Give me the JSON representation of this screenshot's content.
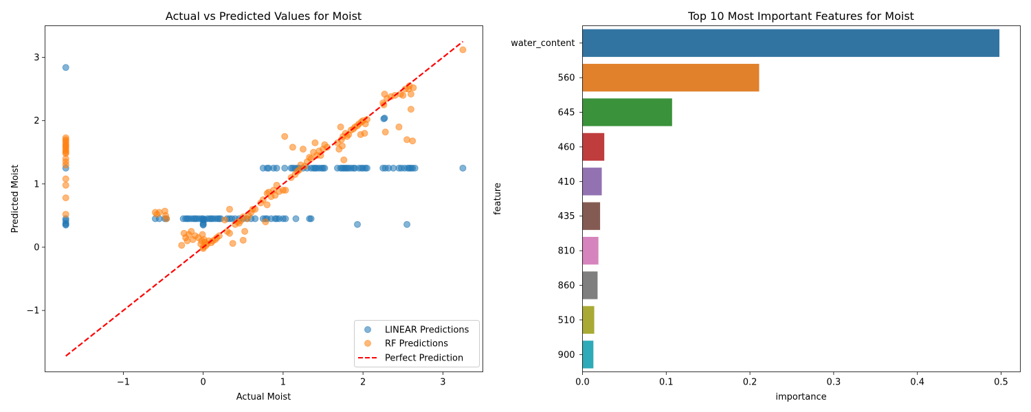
{
  "figure": {
    "background": "#ffffff"
  },
  "chart_data": [
    {
      "type": "scatter",
      "title": "Actual vs Predicted Values for Moist",
      "xlabel": "Actual Moist",
      "ylabel": "Predicted Moist",
      "xlim": [
        -1.98,
        3.5
      ],
      "ylim": [
        -1.97,
        3.5
      ],
      "xticks": [
        -1,
        0,
        1,
        2,
        3
      ],
      "yticks": [
        -1,
        0,
        1,
        2,
        3
      ],
      "tick_labels": {
        "x": [
          "−1",
          "0",
          "1",
          "2",
          "3"
        ],
        "y": [
          "−1",
          "0",
          "1",
          "2",
          "3"
        ]
      },
      "grid": false,
      "legend_position": "lower-right",
      "legend": [
        {
          "label": "LINEAR Predictions",
          "kind": "marker",
          "color": "#1f77b4"
        },
        {
          "label": "RF Predictions",
          "kind": "marker",
          "color": "#ff7f0e"
        },
        {
          "label": "Perfect Prediction",
          "kind": "dashed-line",
          "color": "#ff0000"
        }
      ],
      "series": [
        {
          "name": "LINEAR Predictions",
          "color": "#1f77b4",
          "alpha": 0.55,
          "points": [
            [
              -1.72,
              2.84
            ],
            [
              -1.72,
              1.25
            ],
            [
              -1.72,
              0.45
            ],
            [
              -1.72,
              0.42
            ],
            [
              -1.72,
              0.38
            ],
            [
              -1.72,
              0.36
            ],
            [
              -1.72,
              0.35
            ],
            [
              -0.6,
              0.45
            ],
            [
              -0.55,
              0.45
            ],
            [
              -0.48,
              0.45
            ],
            [
              -0.46,
              0.45
            ],
            [
              -0.25,
              0.45
            ],
            [
              -0.22,
              0.45
            ],
            [
              -0.2,
              0.45
            ],
            [
              -0.18,
              0.45
            ],
            [
              -0.15,
              0.45
            ],
            [
              -0.12,
              0.45
            ],
            [
              -0.1,
              0.45
            ],
            [
              -0.08,
              0.45
            ],
            [
              -0.05,
              0.45
            ],
            [
              -0.02,
              0.45
            ],
            [
              0.0,
              0.45
            ],
            [
              0.0,
              0.43
            ],
            [
              0.0,
              0.38
            ],
            [
              0.0,
              0.36
            ],
            [
              0.0,
              0.35
            ],
            [
              0.02,
              0.44
            ],
            [
              0.05,
              0.45
            ],
            [
              0.08,
              0.45
            ],
            [
              0.1,
              0.45
            ],
            [
              0.12,
              0.45
            ],
            [
              0.15,
              0.45
            ],
            [
              0.18,
              0.45
            ],
            [
              0.2,
              0.45
            ],
            [
              0.22,
              0.45
            ],
            [
              0.3,
              0.45
            ],
            [
              0.33,
              0.45
            ],
            [
              0.36,
              0.45
            ],
            [
              0.4,
              0.45
            ],
            [
              0.45,
              0.45
            ],
            [
              0.5,
              0.45
            ],
            [
              0.55,
              0.45
            ],
            [
              0.6,
              0.45
            ],
            [
              0.65,
              0.45
            ],
            [
              0.75,
              0.45
            ],
            [
              0.78,
              0.45
            ],
            [
              0.8,
              0.45
            ],
            [
              0.85,
              0.45
            ],
            [
              0.9,
              0.45
            ],
            [
              0.92,
              0.45
            ],
            [
              0.95,
              0.45
            ],
            [
              1.0,
              0.45
            ],
            [
              1.03,
              0.45
            ],
            [
              1.16,
              0.45
            ],
            [
              1.33,
              0.45
            ],
            [
              1.35,
              0.45
            ],
            [
              0.75,
              1.25
            ],
            [
              0.8,
              1.25
            ],
            [
              0.82,
              1.25
            ],
            [
              0.88,
              1.25
            ],
            [
              0.92,
              1.25
            ],
            [
              1.02,
              1.25
            ],
            [
              1.1,
              1.25
            ],
            [
              1.12,
              1.25
            ],
            [
              1.15,
              1.25
            ],
            [
              1.18,
              1.25
            ],
            [
              1.2,
              1.25
            ],
            [
              1.25,
              1.25
            ],
            [
              1.3,
              1.25
            ],
            [
              1.35,
              1.25
            ],
            [
              1.38,
              1.25
            ],
            [
              1.4,
              1.25
            ],
            [
              1.42,
              1.25
            ],
            [
              1.45,
              1.25
            ],
            [
              1.48,
              1.25
            ],
            [
              1.5,
              1.25
            ],
            [
              1.52,
              1.25
            ],
            [
              1.68,
              1.25
            ],
            [
              1.72,
              1.25
            ],
            [
              1.74,
              1.25
            ],
            [
              1.76,
              1.25
            ],
            [
              1.78,
              1.25
            ],
            [
              1.8,
              1.25
            ],
            [
              1.82,
              1.25
            ],
            [
              1.85,
              1.25
            ],
            [
              1.88,
              1.25
            ],
            [
              1.9,
              1.25
            ],
            [
              1.95,
              1.25
            ],
            [
              1.98,
              1.25
            ],
            [
              2.0,
              1.25
            ],
            [
              2.03,
              1.25
            ],
            [
              2.05,
              1.25
            ],
            [
              2.25,
              1.25
            ],
            [
              2.28,
              1.25
            ],
            [
              2.32,
              1.25
            ],
            [
              2.38,
              1.25
            ],
            [
              2.45,
              1.25
            ],
            [
              2.48,
              1.25
            ],
            [
              2.52,
              1.25
            ],
            [
              2.56,
              1.25
            ],
            [
              2.58,
              1.25
            ],
            [
              2.6,
              1.25
            ],
            [
              2.62,
              1.25
            ],
            [
              2.65,
              1.25
            ],
            [
              3.25,
              1.25
            ],
            [
              2.26,
              2.03
            ],
            [
              2.27,
              2.04
            ],
            [
              1.93,
              0.36
            ],
            [
              2.55,
              0.36
            ]
          ]
        },
        {
          "name": "RF Predictions",
          "color": "#ff7f0e",
          "alpha": 0.55,
          "points": [
            [
              -1.72,
              1.73
            ],
            [
              -1.72,
              1.7
            ],
            [
              -1.72,
              1.68
            ],
            [
              -1.72,
              1.65
            ],
            [
              -1.72,
              1.62
            ],
            [
              -1.72,
              1.6
            ],
            [
              -1.72,
              1.58
            ],
            [
              -1.72,
              1.55
            ],
            [
              -1.72,
              1.52
            ],
            [
              -1.72,
              1.5
            ],
            [
              -1.72,
              1.48
            ],
            [
              -1.72,
              1.4
            ],
            [
              -1.72,
              1.35
            ],
            [
              -1.72,
              1.3
            ],
            [
              -1.72,
              1.08
            ],
            [
              -1.72,
              0.98
            ],
            [
              -1.72,
              0.78
            ],
            [
              -1.72,
              0.52
            ],
            [
              -0.6,
              0.55
            ],
            [
              -0.58,
              0.52
            ],
            [
              -0.55,
              0.55
            ],
            [
              -0.48,
              0.57
            ],
            [
              -0.47,
              0.5
            ],
            [
              -0.46,
              0.45
            ],
            [
              -0.27,
              0.03
            ],
            [
              -0.24,
              0.22
            ],
            [
              -0.22,
              0.15
            ],
            [
              -0.2,
              0.1
            ],
            [
              -0.18,
              0.2
            ],
            [
              -0.15,
              0.25
            ],
            [
              -0.13,
              0.12
            ],
            [
              -0.1,
              0.18
            ],
            [
              -0.06,
              0.15
            ],
            [
              -0.03,
              0.05
            ],
            [
              -0.02,
              0.1
            ],
            [
              -0.01,
              0.2
            ],
            [
              0.0,
              0.0
            ],
            [
              0.0,
              -0.02
            ],
            [
              0.01,
              0.12
            ],
            [
              0.02,
              0.08
            ],
            [
              0.03,
              0.02
            ],
            [
              0.05,
              0.05
            ],
            [
              0.07,
              0.1
            ],
            [
              0.1,
              0.07
            ],
            [
              0.12,
              0.1
            ],
            [
              0.15,
              0.12
            ],
            [
              0.17,
              0.15
            ],
            [
              0.2,
              0.18
            ],
            [
              0.27,
              0.43
            ],
            [
              0.3,
              0.25
            ],
            [
              0.33,
              0.6
            ],
            [
              0.33,
              0.22
            ],
            [
              0.37,
              0.06
            ],
            [
              0.4,
              0.36
            ],
            [
              0.43,
              0.4
            ],
            [
              0.45,
              0.38
            ],
            [
              0.47,
              0.42
            ],
            [
              0.5,
              0.11
            ],
            [
              0.5,
              0.48
            ],
            [
              0.52,
              0.25
            ],
            [
              0.55,
              0.45
            ],
            [
              0.57,
              0.5
            ],
            [
              0.6,
              0.55
            ],
            [
              0.62,
              0.6
            ],
            [
              0.65,
              0.6
            ],
            [
              0.72,
              0.7
            ],
            [
              0.75,
              0.75
            ],
            [
              0.78,
              0.4
            ],
            [
              0.8,
              0.67
            ],
            [
              0.8,
              0.85
            ],
            [
              0.82,
              0.87
            ],
            [
              0.85,
              0.8
            ],
            [
              0.88,
              0.9
            ],
            [
              0.9,
              0.82
            ],
            [
              0.92,
              0.98
            ],
            [
              0.95,
              0.88
            ],
            [
              1.0,
              0.9
            ],
            [
              1.02,
              1.75
            ],
            [
              1.03,
              0.9
            ],
            [
              1.1,
              1.1
            ],
            [
              1.12,
              1.58
            ],
            [
              1.15,
              1.15
            ],
            [
              1.18,
              1.2
            ],
            [
              1.2,
              1.22
            ],
            [
              1.22,
              1.3
            ],
            [
              1.25,
              1.55
            ],
            [
              1.27,
              1.28
            ],
            [
              1.3,
              1.35
            ],
            [
              1.33,
              1.42
            ],
            [
              1.35,
              1.4
            ],
            [
              1.38,
              1.5
            ],
            [
              1.4,
              1.65
            ],
            [
              1.42,
              1.45
            ],
            [
              1.45,
              1.52
            ],
            [
              1.47,
              1.45
            ],
            [
              1.5,
              1.55
            ],
            [
              1.52,
              1.62
            ],
            [
              1.55,
              1.58
            ],
            [
              1.68,
              1.65
            ],
            [
              1.7,
              1.55
            ],
            [
              1.72,
              1.9
            ],
            [
              1.73,
              1.7
            ],
            [
              1.74,
              1.6
            ],
            [
              1.75,
              1.75
            ],
            [
              1.76,
              1.38
            ],
            [
              1.78,
              1.8
            ],
            [
              1.8,
              1.75
            ],
            [
              1.82,
              1.78
            ],
            [
              1.85,
              1.85
            ],
            [
              1.88,
              1.87
            ],
            [
              1.9,
              1.9
            ],
            [
              1.93,
              1.92
            ],
            [
              1.95,
              1.95
            ],
            [
              1.97,
              1.78
            ],
            [
              1.98,
              1.98
            ],
            [
              2.0,
              2.0
            ],
            [
              2.02,
              1.8
            ],
            [
              2.03,
              1.95
            ],
            [
              2.05,
              2.02
            ],
            [
              2.25,
              2.28
            ],
            [
              2.26,
              2.25
            ],
            [
              2.27,
              2.42
            ],
            [
              2.28,
              1.82
            ],
            [
              2.3,
              2.35
            ],
            [
              2.35,
              2.38
            ],
            [
              2.4,
              2.4
            ],
            [
              2.45,
              1.9
            ],
            [
              2.47,
              2.42
            ],
            [
              2.5,
              2.4
            ],
            [
              2.53,
              2.5
            ],
            [
              2.55,
              1.7
            ],
            [
              2.57,
              2.5
            ],
            [
              2.58,
              2.55
            ],
            [
              2.6,
              2.42
            ],
            [
              2.6,
              2.18
            ],
            [
              2.62,
              1.68
            ],
            [
              2.63,
              2.52
            ],
            [
              3.25,
              3.12
            ]
          ]
        },
        {
          "name": "Perfect Prediction",
          "color": "#ff0000",
          "kind": "dashed-line",
          "points": [
            [
              -1.72,
              -1.72
            ],
            [
              3.25,
              3.25
            ]
          ]
        }
      ]
    },
    {
      "type": "bar",
      "orientation": "horizontal",
      "title": "Top 10 Most Important Features for Moist",
      "xlabel": "importance",
      "ylabel": "feature",
      "xlim": [
        0,
        0.523
      ],
      "xticks": [
        0.0,
        0.1,
        0.2,
        0.3,
        0.4,
        0.5
      ],
      "tick_labels": {
        "x": [
          "0.0",
          "0.1",
          "0.2",
          "0.3",
          "0.4",
          "0.5"
        ]
      },
      "grid": false,
      "categories": [
        "water_content",
        "560",
        "645",
        "460",
        "410",
        "435",
        "810",
        "860",
        "510",
        "900"
      ],
      "values": [
        0.498,
        0.211,
        0.107,
        0.026,
        0.023,
        0.021,
        0.019,
        0.018,
        0.014,
        0.013
      ],
      "colors": [
        "#3274a1",
        "#e1812c",
        "#3a923a",
        "#c03d3e",
        "#9372b2",
        "#845b53",
        "#d684bd",
        "#7f7f7f",
        "#a9aa35",
        "#2eaab8"
      ]
    }
  ]
}
